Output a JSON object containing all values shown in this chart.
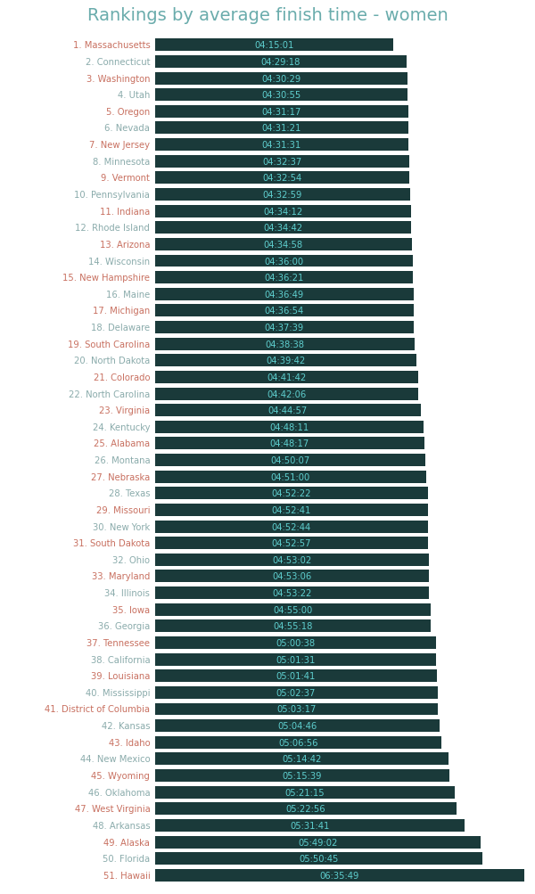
{
  "title": "Rankings by average finish time - women",
  "title_color": "#6aacac",
  "title_fontsize": 14,
  "background_color": "#ffffff",
  "bar_color": "#1a3a3a",
  "label_color_odd": "#c87060",
  "label_color_even": "#8aabab",
  "text_color_in_bar": "#5ecece",
  "categories": [
    "1. Massachusetts",
    "2. Connecticut",
    "3. Washington",
    "4. Utah",
    "5. Oregon",
    "6. Nevada",
    "7. New Jersey",
    "8. Minnesota",
    "9. Vermont",
    "10. Pennsylvania",
    "11. Indiana",
    "12. Rhode Island",
    "13. Arizona",
    "14. Wisconsin",
    "15. New Hampshire",
    "16. Maine",
    "17. Michigan",
    "18. Delaware",
    "19. South Carolina",
    "20. North Dakota",
    "21. Colorado",
    "22. North Carolina",
    "23. Virginia",
    "24. Kentucky",
    "25. Alabama",
    "26. Montana",
    "27. Nebraska",
    "28. Texas",
    "29. Missouri",
    "30. New York",
    "31. South Dakota",
    "32. Ohio",
    "33. Maryland",
    "34. Illinois",
    "35. Iowa",
    "36. Georgia",
    "37. Tennessee",
    "38. California",
    "39. Louisiana",
    "40. Mississippi",
    "41. District of Columbia",
    "42. Kansas",
    "43. Idaho",
    "44. New Mexico",
    "45. Wyoming",
    "46. Oklahoma",
    "47. West Virginia",
    "48. Arkansas",
    "49. Alaska",
    "50. Florida",
    "51. Hawaii"
  ],
  "times_str": [
    "04:15:01",
    "04:29:18",
    "04:30:29",
    "04:30:55",
    "04:31:17",
    "04:31:21",
    "04:31:31",
    "04:32:37",
    "04:32:54",
    "04:32:59",
    "04:34:12",
    "04:34:42",
    "04:34:58",
    "04:36:00",
    "04:36:21",
    "04:36:49",
    "04:36:54",
    "04:37:39",
    "04:38:38",
    "04:39:42",
    "04:41:42",
    "04:42:06",
    "04:44:57",
    "04:48:11",
    "04:48:17",
    "04:50:07",
    "04:51:00",
    "04:52:22",
    "04:52:41",
    "04:52:44",
    "04:52:57",
    "04:53:02",
    "04:53:06",
    "04:53:22",
    "04:55:00",
    "04:55:18",
    "05:00:38",
    "05:01:31",
    "05:01:41",
    "05:02:37",
    "05:03:17",
    "05:04:46",
    "05:06:56",
    "05:14:42",
    "05:15:39",
    "05:21:15",
    "05:22:56",
    "05:31:41",
    "05:49:02",
    "05:50:45",
    "06:35:49"
  ],
  "times_seconds": [
    15301,
    16158,
    16229,
    16255,
    16277,
    16281,
    16291,
    16357,
    16374,
    16379,
    16452,
    16482,
    16498,
    16560,
    16581,
    16609,
    16614,
    16659,
    16718,
    16782,
    16902,
    16926,
    17097,
    17291,
    17297,
    17407,
    17460,
    17542,
    17561,
    17564,
    17577,
    17582,
    17586,
    17602,
    17700,
    17718,
    18038,
    18091,
    18101,
    18157,
    18197,
    18286,
    18416,
    18882,
    18939,
    19275,
    19376,
    19901,
    20942,
    21045,
    23749
  ],
  "figsize": [
    6.0,
    10.04
  ],
  "dpi": 100
}
